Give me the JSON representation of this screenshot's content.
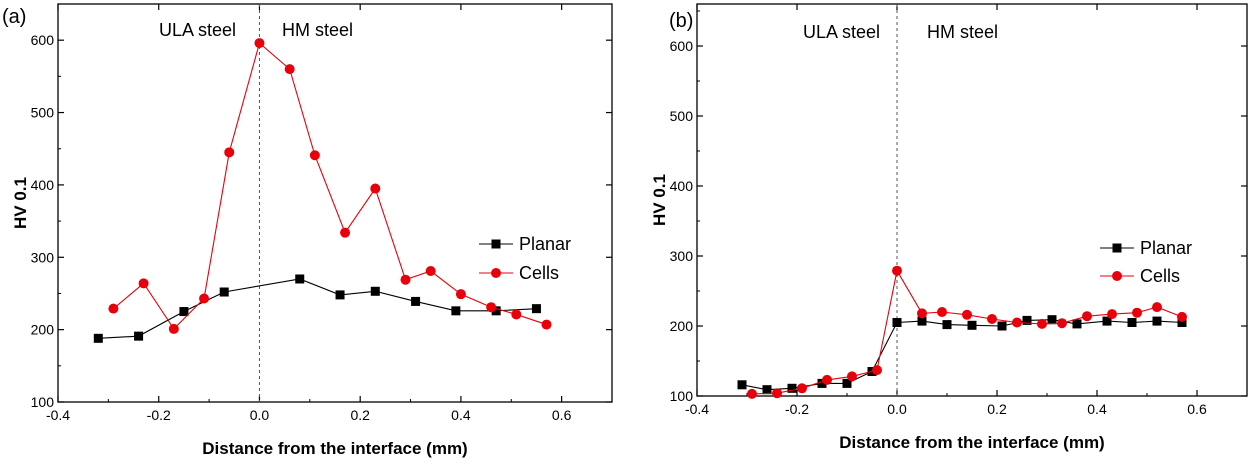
{
  "chart_data": [
    {
      "type": "line",
      "panel_label": "(a)",
      "xlabel": "Distance from the interface (mm)",
      "ylabel": "HV 0.1",
      "xlim": [
        -0.4,
        0.7
      ],
      "ylim": [
        100,
        650
      ],
      "xticks": [
        -0.4,
        -0.2,
        0.0,
        0.2,
        0.4,
        0.6
      ],
      "xtick_labels": [
        "-0.4",
        "-0.2",
        "0.0",
        "0.2",
        "0.4",
        "0.6"
      ],
      "yticks": [
        100,
        200,
        300,
        400,
        500,
        600
      ],
      "ytick_labels": [
        "100",
        "200",
        "300",
        "400",
        "500",
        "600"
      ],
      "interface_x": 0.0,
      "annotations": {
        "left": "ULA steel",
        "right": "HM steel"
      },
      "legend_position": "right",
      "series": [
        {
          "name": "Planar",
          "color": "#000000",
          "marker": "square",
          "x": [
            -0.32,
            -0.24,
            -0.15,
            -0.07,
            0.08,
            0.16,
            0.23,
            0.31,
            0.39,
            0.47,
            0.55
          ],
          "y": [
            188,
            191,
            225,
            252,
            270,
            248,
            253,
            239,
            226,
            226,
            229
          ]
        },
        {
          "name": "Cells",
          "color": "#e8000b",
          "marker": "circle",
          "x": [
            -0.29,
            -0.23,
            -0.17,
            -0.11,
            -0.06,
            0.0,
            0.06,
            0.11,
            0.17,
            0.23,
            0.29,
            0.34,
            0.4,
            0.46,
            0.51,
            0.57
          ],
          "y": [
            229,
            264,
            201,
            243,
            445,
            596,
            560,
            441,
            334,
            395,
            269,
            281,
            249,
            231,
            221,
            207
          ]
        }
      ]
    },
    {
      "type": "line",
      "panel_label": "(b)",
      "xlabel": "Distance from the interface (mm)",
      "ylabel": "HV 0.1",
      "xlim": [
        -0.4,
        0.7
      ],
      "ylim": [
        100,
        660
      ],
      "xticks": [
        -0.4,
        -0.2,
        0.0,
        0.2,
        0.4,
        0.6
      ],
      "xtick_labels": [
        "-0.4",
        "-0.2",
        "0.0",
        "0.2",
        "0.4",
        "0.6"
      ],
      "yticks": [
        100,
        200,
        300,
        400,
        500,
        600
      ],
      "ytick_labels": [
        "100",
        "200",
        "300",
        "400",
        "500",
        "600"
      ],
      "interface_x": 0.0,
      "annotations": {
        "left": "ULA steel",
        "right": "HM steel"
      },
      "legend_position": "right",
      "series": [
        {
          "name": "Planar",
          "color": "#000000",
          "marker": "square",
          "x": [
            -0.31,
            -0.26,
            -0.21,
            -0.15,
            -0.1,
            -0.05,
            0.0,
            0.05,
            0.1,
            0.15,
            0.21,
            0.26,
            0.31,
            0.36,
            0.42,
            0.47,
            0.52,
            0.57
          ],
          "y": [
            116,
            109,
            111,
            118,
            118,
            135,
            205,
            207,
            202,
            201,
            200,
            208,
            209,
            203,
            207,
            205,
            207,
            205
          ]
        },
        {
          "name": "Cells",
          "color": "#e8000b",
          "marker": "circle",
          "x": [
            -0.29,
            -0.24,
            -0.19,
            -0.14,
            -0.09,
            -0.04,
            0.0,
            0.05,
            0.09,
            0.14,
            0.19,
            0.24,
            0.29,
            0.33,
            0.38,
            0.43,
            0.48,
            0.52,
            0.57
          ],
          "y": [
            103,
            104,
            111,
            123,
            128,
            137,
            279,
            218,
            220,
            216,
            210,
            205,
            203,
            204,
            214,
            217,
            219,
            227,
            213
          ]
        }
      ]
    }
  ]
}
